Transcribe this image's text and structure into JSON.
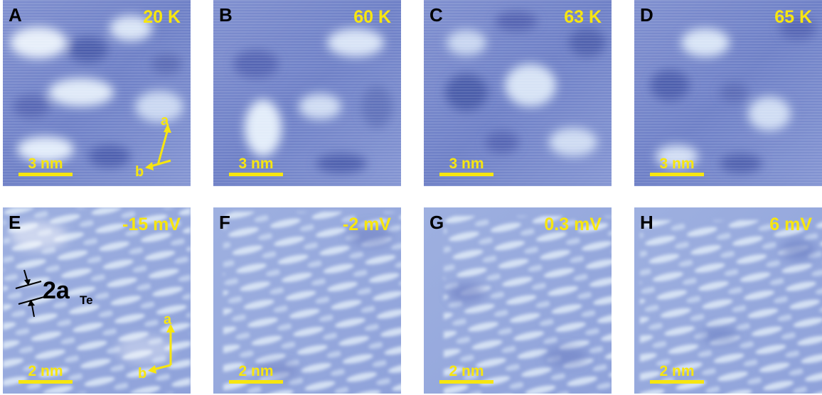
{
  "colors": {
    "label_yellow": "#f7e60f",
    "letter_black": "#000000"
  },
  "panels": [
    {
      "letter": "A",
      "condition": "20 K",
      "scale_bar": "3 nm",
      "axes": {
        "a": "a",
        "b": "b"
      }
    },
    {
      "letter": "B",
      "condition": "60 K",
      "scale_bar": "3 nm"
    },
    {
      "letter": "C",
      "condition": "63 K",
      "scale_bar": "3 nm"
    },
    {
      "letter": "D",
      "condition": "65 K",
      "scale_bar": "3 nm"
    },
    {
      "letter": "E",
      "condition": "-15 mV",
      "scale_bar": "2 nm",
      "axes": {
        "a": "a",
        "b": "b"
      },
      "period": {
        "main": "2a",
        "sub": "Te"
      }
    },
    {
      "letter": "F",
      "condition": "-2 mV",
      "scale_bar": "2 nm"
    },
    {
      "letter": "G",
      "condition": "0.3 mV",
      "scale_bar": "2 nm"
    },
    {
      "letter": "H",
      "condition": "6 mV",
      "scale_bar": "2 nm"
    }
  ]
}
